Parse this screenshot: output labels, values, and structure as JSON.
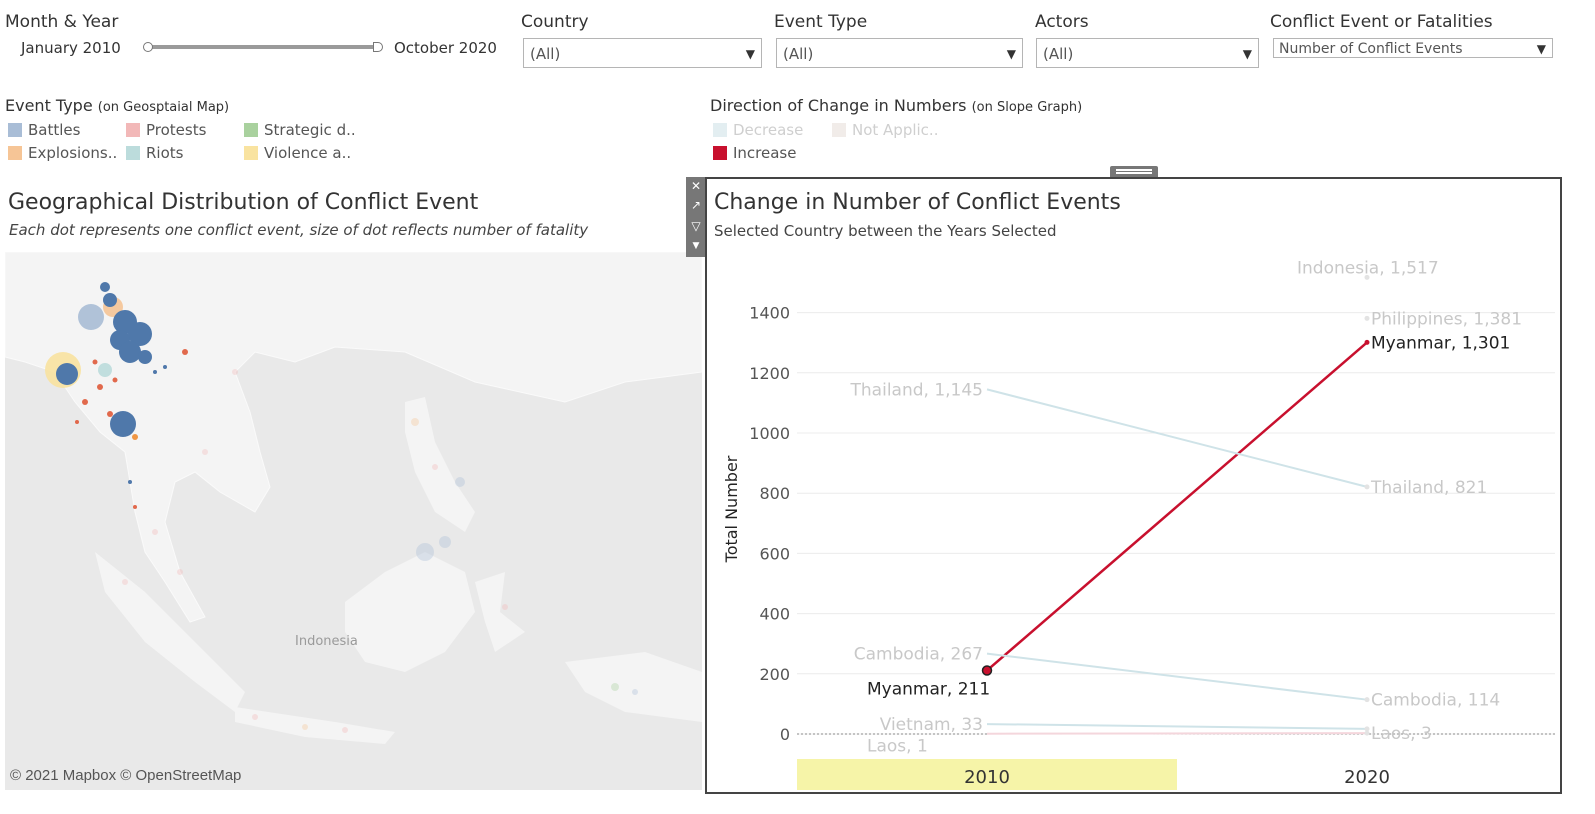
{
  "filters": {
    "month_year": {
      "title": "Month & Year",
      "start": "January 2010",
      "end": "October 2020"
    },
    "country": {
      "title": "Country",
      "value": "(All)"
    },
    "event_type": {
      "title": "Event Type",
      "value": "(All)"
    },
    "actors": {
      "title": "Actors",
      "value": "(All)"
    },
    "measure": {
      "title": "Conflict Event or Fatalities",
      "value": "Number of Conflict Events"
    }
  },
  "legend_event_type": {
    "title": "Event Type",
    "subtitle": "(on Geosptaial Map)",
    "items": [
      {
        "label": "Battles",
        "color": "#a9bdd6"
      },
      {
        "label": "Protests",
        "color": "#f2b8b8"
      },
      {
        "label": "Strategic d..",
        "color": "#a9d19e"
      },
      {
        "label": "Explosions..",
        "color": "#f6c596"
      },
      {
        "label": "Riots",
        "color": "#bcdcdc"
      },
      {
        "label": "Violence a..",
        "color": "#f9e3a0"
      }
    ]
  },
  "legend_direction": {
    "title": "Direction of Change in Numbers",
    "subtitle": "(on Slope Graph)",
    "items": [
      {
        "label": "Decrease",
        "color": "#cfe3e8"
      },
      {
        "label": "Not Applic..",
        "color": "#ede5e2"
      },
      {
        "label": "Increase",
        "color": "#c8102e"
      }
    ]
  },
  "map": {
    "title": "Geographical Distribution of Conflict Event",
    "subtitle": "Each dot represents one conflict event, size of dot reflects number of fatality",
    "place_label": "Indonesia",
    "attribution": "© 2021 Mapbox © OpenStreetMap",
    "icons": [
      "close-icon",
      "external-link-icon",
      "filter-icon",
      "dropdown-icon"
    ]
  },
  "slope": {
    "title": "Change in Number of Conflict Events",
    "subtitle": "Selected Country between the Years Selected"
  },
  "chart_data": {
    "type": "line",
    "x": [
      "2010",
      "2020"
    ],
    "highlighted_x": "2010",
    "ylabel": "Total Number",
    "yticks": [
      0,
      200,
      400,
      600,
      800,
      1000,
      1200,
      1400
    ],
    "ylim": [
      0,
      1560
    ],
    "grid": true,
    "series": [
      {
        "name": "Indonesia",
        "values": [
          null,
          1517
        ],
        "end_label": "Indonesia, 1,517",
        "direction": "Not Applicable"
      },
      {
        "name": "Philippines",
        "values": [
          null,
          1381
        ],
        "end_label": "Philippines, 1,381",
        "direction": "Not Applicable"
      },
      {
        "name": "Myanmar",
        "values": [
          211,
          1301
        ],
        "start_label": "Myanmar, 211",
        "end_label": "Myanmar, 1,301",
        "direction": "Increase"
      },
      {
        "name": "Thailand",
        "values": [
          1145,
          821
        ],
        "start_label": "Thailand, 1,145",
        "end_label": "Thailand, 821",
        "direction": "Decrease"
      },
      {
        "name": "Cambodia",
        "values": [
          267,
          114
        ],
        "start_label": "Cambodia, 267",
        "end_label": "Cambodia, 114",
        "direction": "Decrease"
      },
      {
        "name": "Vietnam",
        "values": [
          33,
          17
        ],
        "start_label": "Vietnam, 33",
        "direction": "Decrease"
      },
      {
        "name": "Laos",
        "values": [
          1,
          3
        ],
        "start_label": "Laos, 1",
        "end_label": "Laos, 3",
        "direction": "Not Applicable"
      }
    ],
    "colors": {
      "Increase": "#c8102e",
      "Decrease": "#cfe3e8",
      "Not Applicable": "#f4d6dc",
      "faded_label": "#c8c8c8",
      "active_label": "#222222"
    }
  }
}
